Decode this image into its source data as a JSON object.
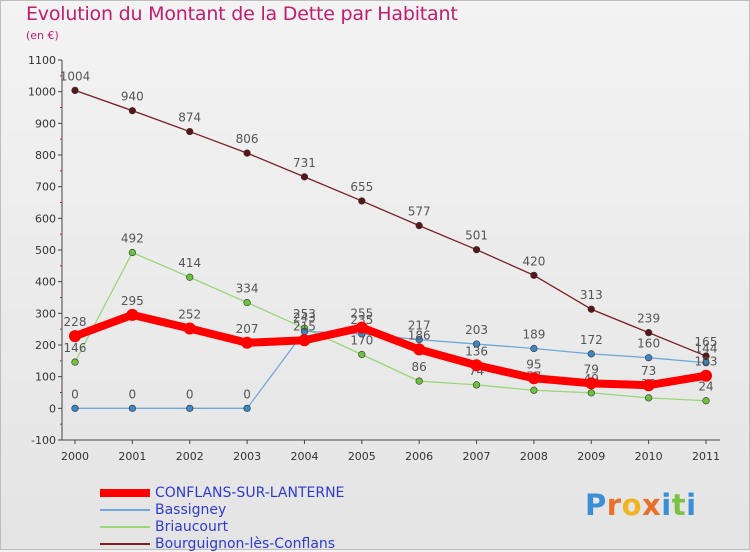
{
  "title": "Evolution du Montant de la Dette par Habitant",
  "subtitle": "(en €)",
  "logo": {
    "text": "Proxiti",
    "letters": [
      {
        "ch": "P",
        "color": "#3a8fd6"
      },
      {
        "ch": "r",
        "color": "#e8702a"
      },
      {
        "ch": "o",
        "color": "#f0b322"
      },
      {
        "ch": "x",
        "color": "#e8702a"
      },
      {
        "ch": "i",
        "color": "#3a8fd6"
      },
      {
        "ch": "t",
        "color": "#7cc242"
      },
      {
        "ch": "i",
        "color": "#3a8fd6"
      }
    ]
  },
  "chart_data": {
    "type": "line",
    "title": "Evolution du Montant de la Dette par Habitant",
    "subtitle": "(en €)",
    "x": [
      "2000",
      "2001",
      "2002",
      "2003",
      "2004",
      "2005",
      "2006",
      "2007",
      "2008",
      "2009",
      "2010",
      "2011"
    ],
    "ylim": [
      -100,
      1100
    ],
    "yticks": [
      -100,
      0,
      100,
      200,
      300,
      400,
      500,
      600,
      700,
      800,
      900,
      1000,
      1100
    ],
    "grid": false,
    "legend_position": "bottom-left",
    "series": [
      {
        "name": "Bourguignon-lès-Conflans",
        "color": "#7a1f24",
        "point_color": "#5a1518",
        "emphasis": false,
        "values": [
          1004,
          940,
          874,
          806,
          731,
          655,
          577,
          501,
          420,
          313,
          239,
          165
        ],
        "labels": [
          "1004",
          "940",
          "874",
          "806",
          "731",
          "655",
          "577",
          "501",
          "420",
          "313",
          "239",
          "165"
        ]
      },
      {
        "name": "Briaucourt",
        "color": "#9ad67a",
        "point_color": "#6cc23a",
        "emphasis": false,
        "values": [
          146,
          492,
          414,
          334,
          253,
          170,
          86,
          74,
          57,
          49,
          33,
          24
        ],
        "labels": [
          "146",
          "492",
          "414",
          "334",
          "253",
          "170",
          "86",
          "74",
          "57",
          "49",
          "33",
          "24"
        ]
      },
      {
        "name": "Bassigney",
        "color": "#6fa8d8",
        "point_color": "#3d86c6",
        "emphasis": false,
        "values": [
          0,
          0,
          0,
          0,
          243,
          235,
          217,
          203,
          189,
          172,
          160,
          144
        ],
        "labels": [
          "0",
          "0",
          "0",
          "0",
          "243",
          "235",
          "217",
          "203",
          "189",
          "172",
          "160",
          "144"
        ]
      },
      {
        "name": "CONFLANS-SUR-LANTERNE",
        "color": "#ff0000",
        "point_color": "#ff0000",
        "emphasis": true,
        "values": [
          228,
          295,
          252,
          207,
          215,
          255,
          186,
          136,
          95,
          79,
          73,
          103
        ],
        "labels": [
          "228",
          "295",
          "252",
          "207",
          "215",
          "255",
          "186",
          "136",
          "95",
          "79",
          "73",
          "103"
        ]
      }
    ],
    "legend": [
      {
        "name": "CONFLANS-SUR-LANTERNE",
        "color": "#ff0000",
        "emphasis": true
      },
      {
        "name": "Bassigney",
        "color": "#6fa8d8",
        "emphasis": false
      },
      {
        "name": "Briaucourt",
        "color": "#9ad67a",
        "emphasis": false
      },
      {
        "name": "Bourguignon-lès-Conflans",
        "color": "#7a1f24",
        "emphasis": false
      }
    ]
  }
}
